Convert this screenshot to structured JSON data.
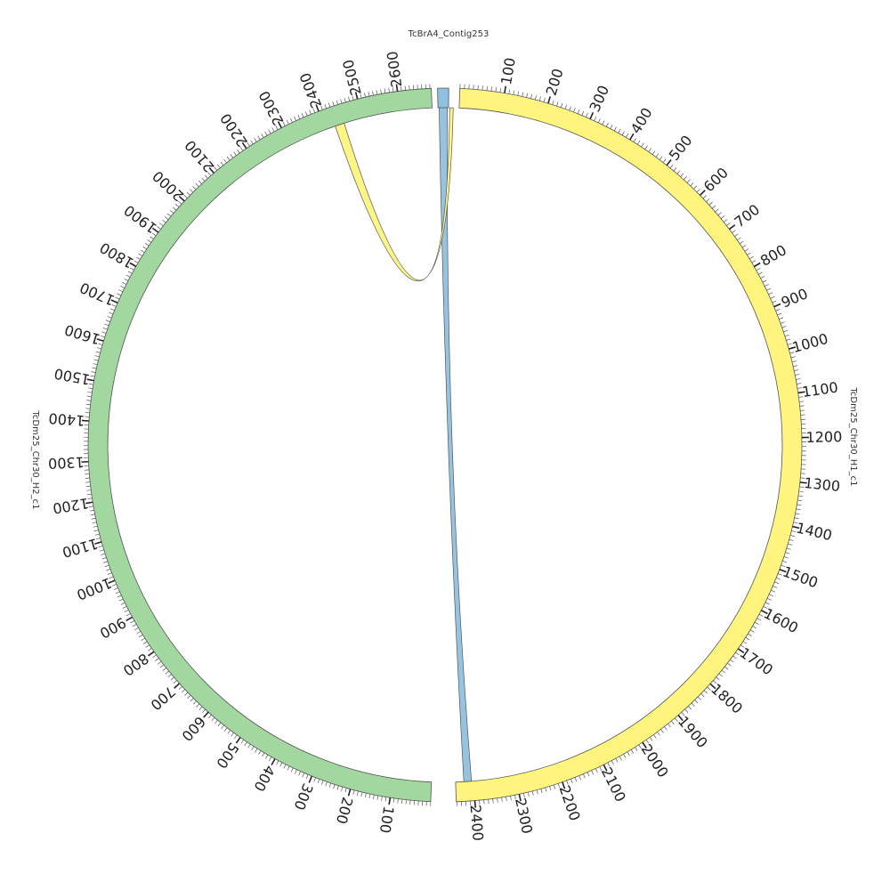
{
  "chart_data": {
    "type": "chord",
    "segments": [
      {
        "id": "contig",
        "name": "TcBrA4_Contig253",
        "color": "#8fc0de",
        "tick_labels": []
      },
      {
        "id": "h1",
        "name": "TcDm25_Chr30_H1_c1",
        "color": "#fff47e",
        "tick_labels": [
          "100",
          "200",
          "300",
          "400",
          "500",
          "600",
          "700",
          "800",
          "900",
          "1000",
          "1100",
          "1200",
          "1300",
          "1400",
          "1500",
          "1600",
          "1700",
          "1800",
          "1900",
          "2000",
          "2100",
          "2200",
          "2300",
          "2400"
        ]
      },
      {
        "id": "h2",
        "name": "TcDm25_Chr30_H2_c1",
        "color": "#a2d7a0",
        "tick_labels": [
          "100",
          "200",
          "300",
          "400",
          "500",
          "600",
          "700",
          "800",
          "900",
          "1000",
          "1100",
          "1200",
          "1300",
          "1400",
          "1500",
          "1600",
          "1700",
          "1800",
          "1900",
          "2000",
          "2100",
          "2200",
          "2300",
          "2400",
          "2500",
          "2600"
        ]
      }
    ],
    "links": [
      {
        "from": "contig",
        "to": "h1",
        "color": "#8fc0de"
      },
      {
        "from": "h1",
        "to": "h2",
        "color": "#fff47e"
      }
    ]
  }
}
